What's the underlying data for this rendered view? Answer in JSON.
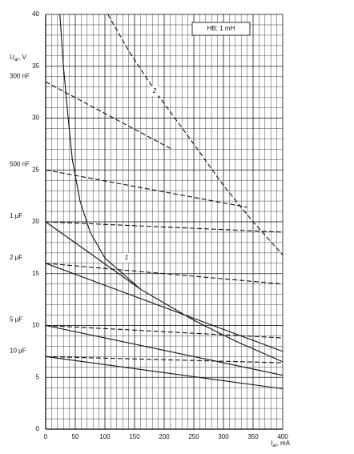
{
  "chart_data": {
    "type": "line",
    "x_label": {
      "symbol": "I",
      "sub": "ar",
      "unit": ", mA"
    },
    "y_label": {
      "symbol": "U",
      "sub": "ar",
      "unit": ", V"
    },
    "legend_box": "HB; 1 mH",
    "xlim": [
      0,
      400
    ],
    "ylim": [
      0,
      40
    ],
    "xticks": [
      0,
      50,
      100,
      150,
      200,
      250,
      300,
      350,
      400
    ],
    "yticks": [
      0,
      5,
      10,
      15,
      20,
      25,
      30,
      35,
      40
    ],
    "grid": true,
    "minor_grid": {
      "x": 10,
      "y": 1
    },
    "capacitance_labels": [
      {
        "value": 33.5,
        "label": "300 nF"
      },
      {
        "value": 25,
        "label": "500 nF"
      },
      {
        "value": 20,
        "label": "1 µF"
      },
      {
        "value": 16,
        "label": "2 µF"
      },
      {
        "value": 10,
        "label": "5 µF"
      },
      {
        "value": 7,
        "label": "10 µF"
      }
    ],
    "curve_labels": [
      "1",
      "2"
    ],
    "series": [
      {
        "color": "#111",
        "dash": false,
        "x": [
          24,
          30,
          38,
          45,
          58,
          75,
          100,
          130,
          160,
          250,
          320,
          400
        ],
        "values": [
          40,
          35,
          30,
          26,
          22,
          19,
          16.5,
          15,
          13.5,
          10.5,
          8.5,
          6.5
        ]
      },
      {
        "color": "#111",
        "dash": true,
        "x": [
          105,
          140,
          186,
          250,
          300,
          350,
          400
        ],
        "values": [
          40,
          36.5,
          32.5,
          27.5,
          23.5,
          20,
          16.8
        ]
      },
      {
        "color": "#111",
        "dash": true,
        "x": [
          0,
          213
        ],
        "values": [
          33.5,
          27
        ]
      },
      {
        "color": "#111",
        "dash": true,
        "x": [
          0,
          340
        ],
        "values": [
          25,
          21.4
        ]
      },
      {
        "color": "#111",
        "dash": true,
        "x": [
          0,
          400
        ],
        "values": [
          20,
          19
        ]
      },
      {
        "color": "#111",
        "dash": false,
        "x": [
          0,
          160
        ],
        "values": [
          20,
          13.5
        ]
      },
      {
        "color": "#111",
        "dash": true,
        "x": [
          0,
          400
        ],
        "values": [
          16,
          14
        ]
      },
      {
        "color": "#111",
        "dash": false,
        "x": [
          0,
          400
        ],
        "values": [
          16,
          7.5
        ]
      },
      {
        "color": "#111",
        "dash": true,
        "x": [
          0,
          400
        ],
        "values": [
          10,
          8.8
        ]
      },
      {
        "color": "#111",
        "dash": false,
        "x": [
          0,
          400
        ],
        "values": [
          10,
          5.2
        ]
      },
      {
        "color": "#111",
        "dash": true,
        "x": [
          0,
          400
        ],
        "values": [
          7,
          6.4
        ]
      },
      {
        "color": "#111",
        "dash": false,
        "x": [
          0,
          400
        ],
        "values": [
          7,
          3.9
        ]
      }
    ]
  }
}
